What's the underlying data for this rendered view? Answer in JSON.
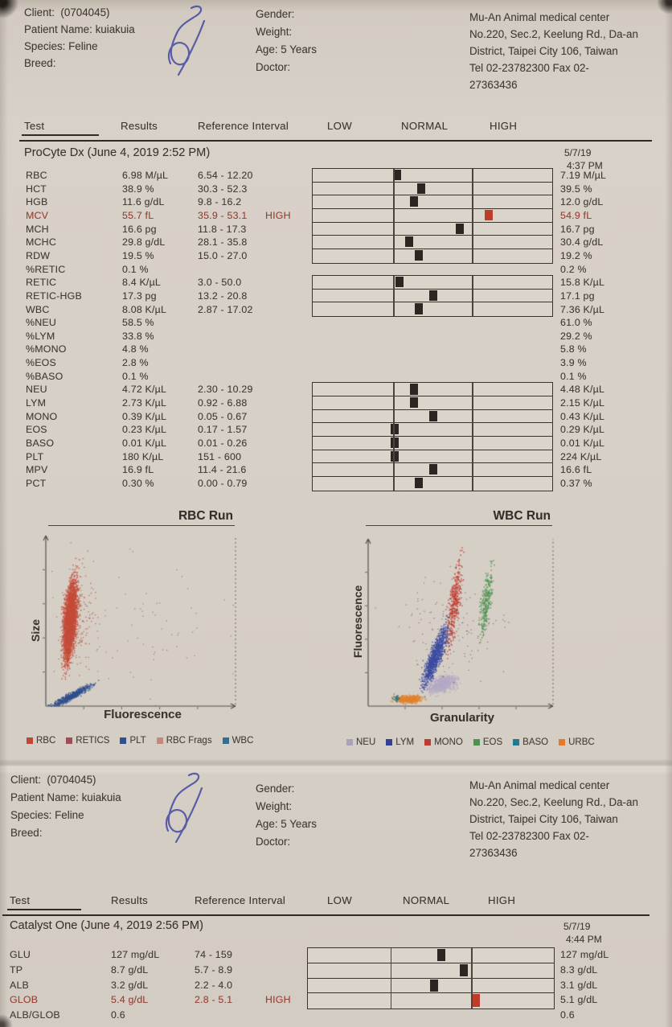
{
  "report": {
    "patient_header": {
      "client_label": "Client:",
      "client_value": "(0704045)",
      "patient_label": "Patient Name:",
      "patient_value": "kuiakuia",
      "species_label": "Species:",
      "species_value": "Feline",
      "breed_label": "Breed:",
      "gender_label": "Gender:",
      "weight_label": "Weight:",
      "age_label": "Age:",
      "age_value": "5 Years",
      "doctor_label": "Doctor:",
      "clinic_lines": [
        "Mu-An Animal medical center",
        "No.220, Sec.2, Keelung Rd., Da-an",
        "District, Taipei City 106, Taiwan",
        "Tel 02-23782300  Fax 02-",
        "27363436"
      ]
    },
    "table_header": {
      "test": "Test",
      "results": "Results",
      "reference": "Reference Interval",
      "low": "LOW",
      "normal": "NORMAL",
      "high": "HIGH"
    },
    "procyte": {
      "title": "ProCyte Dx (June 4, 2019 2:52 PM)",
      "prev_date": "5/7/19",
      "prev_time": "4:37 PM",
      "rows": [
        {
          "test": "RBC",
          "result": "6.98 M/µL",
          "ref": "6.54 - 12.20",
          "marker": 0.35,
          "prev": "7.19 M/µL"
        },
        {
          "test": "HCT",
          "result": "38.9 %",
          "ref": "30.3 - 52.3",
          "marker": 0.45,
          "prev": "39.5 %"
        },
        {
          "test": "HGB",
          "result": "11.6 g/dL",
          "ref": "9.8 - 16.2",
          "marker": 0.42,
          "prev": "12.0 g/dL"
        },
        {
          "test": "MCV",
          "result": "55.7 fL",
          "ref": "35.9 - 53.1",
          "flag": "HIGH",
          "marker": 0.73,
          "abnormal": true,
          "prev": "54.9 fL",
          "prev_abnormal": true
        },
        {
          "test": "MCH",
          "result": "16.6 pg",
          "ref": "11.8 - 17.3",
          "marker": 0.61,
          "prev": "16.7 pg"
        },
        {
          "test": "MCHC",
          "result": "29.8 g/dL",
          "ref": "28.1 - 35.8",
          "marker": 0.4,
          "prev": "30.4 g/dL"
        },
        {
          "test": "RDW",
          "result": "19.5 %",
          "ref": "15.0 - 27.0",
          "marker": 0.44,
          "prev": "19.2 %"
        },
        {
          "test": "%RETIC",
          "result": "0.1 %",
          "prev": "0.2 %"
        },
        {
          "test": "RETIC",
          "result": "8.4 K/µL",
          "ref": "3.0 - 50.0",
          "marker": 0.36,
          "prev": "15.8 K/µL"
        },
        {
          "test": "RETIC-HGB",
          "result": "17.3 pg",
          "ref": "13.2 - 20.8",
          "marker": 0.5,
          "prev": "17.1 pg"
        },
        {
          "test": "WBC",
          "result": "8.08 K/µL",
          "ref": "2.87 - 17.02",
          "marker": 0.44,
          "prev": "7.36 K/µL"
        },
        {
          "test": "%NEU",
          "result": "58.5 %",
          "prev": "61.0 %"
        },
        {
          "test": "%LYM",
          "result": "33.8 %",
          "prev": "29.2 %"
        },
        {
          "test": "%MONO",
          "result": "4.8 %",
          "prev": "5.8 %"
        },
        {
          "test": "%EOS",
          "result": "2.8 %",
          "prev": "3.9 %"
        },
        {
          "test": "%BASO",
          "result": "0.1 %",
          "prev": "0.1 %"
        },
        {
          "test": "NEU",
          "result": "4.72 K/µL",
          "ref": "2.30 - 10.29",
          "marker": 0.42,
          "prev": "4.48 K/µL"
        },
        {
          "test": "LYM",
          "result": "2.73 K/µL",
          "ref": "0.92 - 6.88",
          "marker": 0.42,
          "prev": "2.15 K/µL"
        },
        {
          "test": "MONO",
          "result": "0.39 K/µL",
          "ref": "0.05 - 0.67",
          "marker": 0.5,
          "prev": "0.43 K/µL"
        },
        {
          "test": "EOS",
          "result": "0.23 K/µL",
          "ref": "0.17 - 1.57",
          "marker": 0.34,
          "prev": "0.29 K/µL"
        },
        {
          "test": "BASO",
          "result": "0.01 K/µL",
          "ref": "0.01 - 0.26",
          "marker": 0.34,
          "prev": "0.01 K/µL"
        },
        {
          "test": "PLT",
          "result": "180 K/µL",
          "ref": "151 - 600",
          "marker": 0.34,
          "prev": "224 K/µL"
        },
        {
          "test": "MPV",
          "result": "16.9 fL",
          "ref": "11.4 - 21.6",
          "marker": 0.5,
          "prev": "16.6 fL"
        },
        {
          "test": "PCT",
          "result": "0.30 %",
          "ref": "0.00 - 0.79",
          "marker": 0.44,
          "prev": "0.37 %"
        }
      ]
    },
    "catalyst": {
      "title": "Catalyst One (June 4, 2019 2:56 PM)",
      "prev_date": "5/7/19",
      "prev_time": "4:44 PM",
      "rows": [
        {
          "test": "GLU",
          "result": "127 mg/dL",
          "ref": "74 - 159",
          "marker": 0.54,
          "prev": "127 mg/dL"
        },
        {
          "test": "TP",
          "result": "8.7 g/dL",
          "ref": "5.7 - 8.9",
          "marker": 0.63,
          "prev": "8.3 g/dL"
        },
        {
          "test": "ALB",
          "result": "3.2 g/dL",
          "ref": "2.2 - 4.0",
          "marker": 0.51,
          "prev": "3.1 g/dL"
        },
        {
          "test": "GLOB",
          "result": "5.4 g/dL",
          "ref": "2.8 - 5.1",
          "flag": "HIGH",
          "marker": 0.68,
          "abnormal": true,
          "prev": "5.1 g/dL"
        },
        {
          "test": "ALB/GLOB",
          "result": "0.6",
          "prev": "0.6"
        }
      ]
    }
  },
  "chart_data": [
    {
      "type": "scatter",
      "title": "RBC Run",
      "xlabel": "Fluorescence",
      "ylabel": "Size",
      "x_range": [
        0,
        1
      ],
      "y_range": [
        0,
        1
      ],
      "grid": false,
      "legend_position": "bottom",
      "legend": [
        {
          "label": "RBC",
          "color": "#c0453a"
        },
        {
          "label": "RETICS",
          "color": "#a34a5a"
        },
        {
          "label": "PLT",
          "color": "#2f4f8e"
        },
        {
          "label": "RBC Frags",
          "color": "#c4897c"
        },
        {
          "label": "WBC",
          "color": "#2e6f93"
        }
      ],
      "clusters": [
        {
          "name": "RBC",
          "color": "#c64a38",
          "cx": 0.125,
          "cy": 0.5,
          "sx": 0.034,
          "sy": 0.2,
          "slope": 3,
          "count": 3000,
          "size": 1.5
        },
        {
          "name": "RBC halo",
          "color": "#b85546",
          "cx": 0.16,
          "cy": 0.5,
          "sx": 0.09,
          "sy": 0.26,
          "slope": 1,
          "count": 220,
          "size": 1.3
        },
        {
          "name": "PLT",
          "color": "#2f4f8e",
          "cx": 0.13,
          "cy": 0.06,
          "sx": 0.11,
          "sy": 0.02,
          "slope": 0.58,
          "count": 600,
          "size": 1.5
        },
        {
          "name": "debris",
          "color": "#77706a",
          "cx": 0.5,
          "cy": 0.45,
          "sx": 0.5,
          "sy": 0.45,
          "slope": 0,
          "count": 80,
          "size": 1.2
        }
      ]
    },
    {
      "type": "scatter",
      "title": "WBC Run",
      "xlabel": "Granularity",
      "ylabel": "Fluorescence",
      "x_range": [
        0,
        1
      ],
      "y_range": [
        0,
        1
      ],
      "grid": false,
      "legend_position": "bottom",
      "legend": [
        {
          "label": "NEU",
          "color": "#aaa2b8"
        },
        {
          "label": "LYM",
          "color": "#333f94"
        },
        {
          "label": "MONO",
          "color": "#bf3a31"
        },
        {
          "label": "EOS",
          "color": "#4c9150"
        },
        {
          "label": "BASO",
          "color": "#1f7b91"
        },
        {
          "label": "URBC",
          "color": "#e07b2c"
        }
      ],
      "clusters": [
        {
          "name": "MONO",
          "color": "#bf3a31",
          "cx": 0.465,
          "cy": 0.63,
          "sx": 0.04,
          "sy": 0.18,
          "slope": 4,
          "count": 420,
          "size": 1.5
        },
        {
          "name": "EOS",
          "color": "#4c9150",
          "cx": 0.635,
          "cy": 0.63,
          "sx": 0.035,
          "sy": 0.14,
          "slope": 3.5,
          "count": 300,
          "size": 1.5
        },
        {
          "name": "LYM",
          "color": "#3c4aa0",
          "cx": 0.36,
          "cy": 0.3,
          "sx": 0.064,
          "sy": 0.09,
          "slope": 2.2,
          "count": 1000,
          "size": 1.5
        },
        {
          "name": "NEU",
          "color": "#b3a9c4",
          "cx": 0.4,
          "cy": 0.135,
          "sx": 0.07,
          "sy": 0.045,
          "slope": 0.3,
          "count": 650,
          "size": 1.6
        },
        {
          "name": "URBC",
          "color": "#e2812c",
          "cx": 0.215,
          "cy": 0.045,
          "sx": 0.07,
          "sy": 0.022,
          "slope": 0,
          "count": 420,
          "size": 1.6
        },
        {
          "name": "BASO",
          "color": "#1f7b91",
          "cx": 0.155,
          "cy": 0.05,
          "sx": 0.02,
          "sy": 0.02,
          "slope": 0,
          "count": 30,
          "size": 1.5
        },
        {
          "name": "debris",
          "color": "#5a554f",
          "cx": 0.45,
          "cy": 0.5,
          "sx": 0.3,
          "sy": 0.3,
          "slope": 0,
          "count": 120,
          "size": 1.1
        }
      ]
    }
  ]
}
